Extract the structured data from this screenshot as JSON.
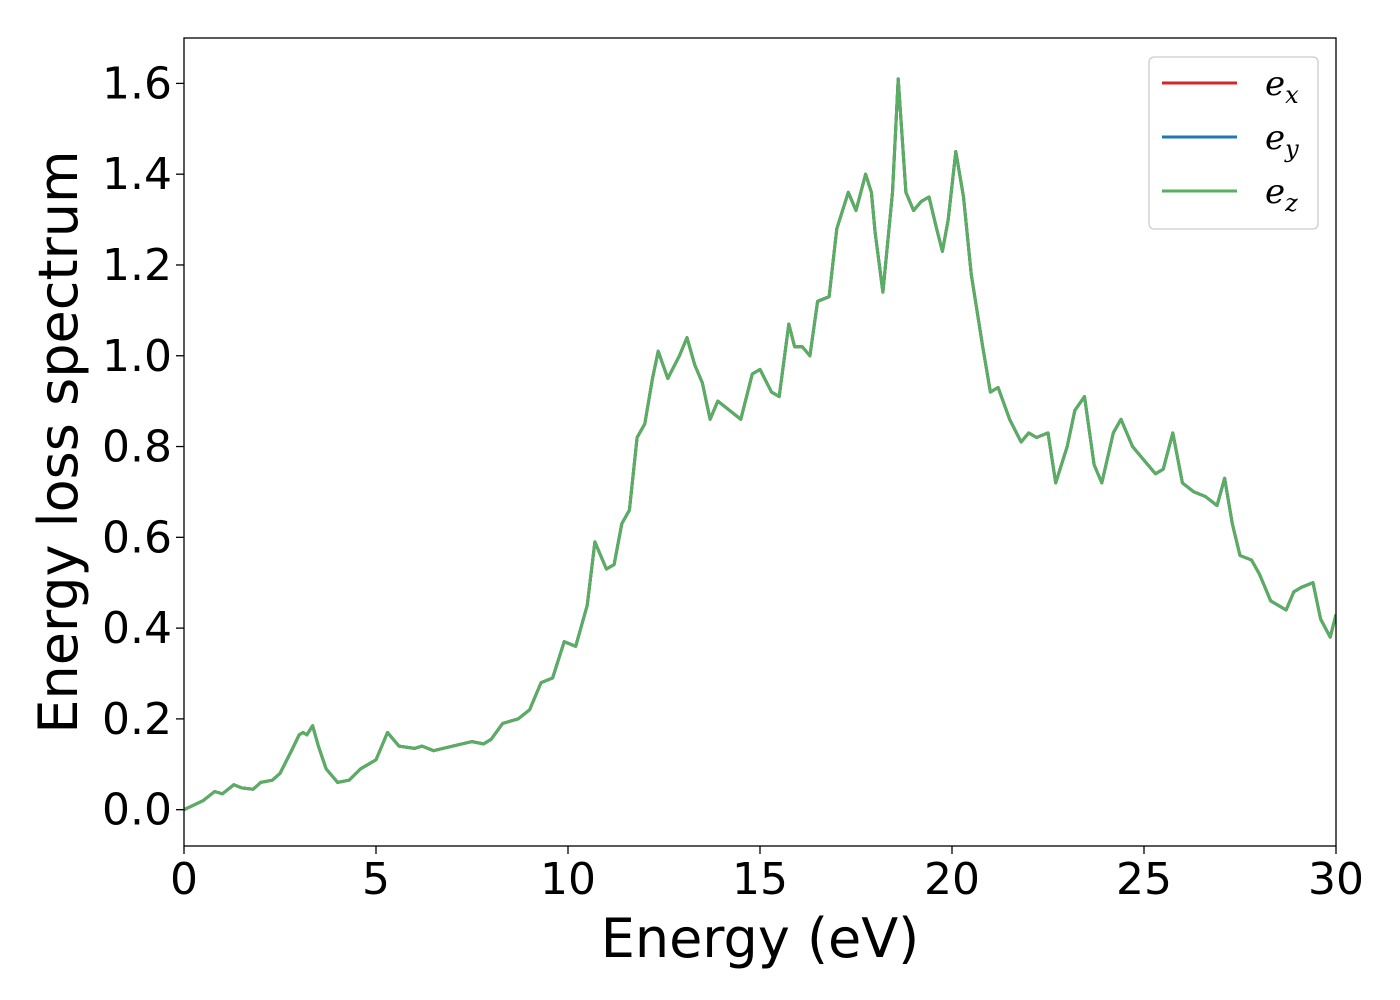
{
  "chart_data": {
    "type": "line",
    "xlabel": "Energy (eV)",
    "ylabel": "Energy loss spectrum",
    "xlim": [
      0,
      30
    ],
    "ylim": [
      -0.08,
      1.7
    ],
    "xticks": [
      0,
      5,
      10,
      15,
      20,
      25,
      30
    ],
    "xtick_labels": [
      "0",
      "5",
      "10",
      "15",
      "20",
      "25",
      "30"
    ],
    "yticks": [
      0.0,
      0.2,
      0.4,
      0.6,
      0.8,
      1.0,
      1.2,
      1.4,
      1.6
    ],
    "ytick_labels": [
      "0.0",
      "0.2",
      "0.4",
      "0.6",
      "0.8",
      "1.0",
      "1.2",
      "1.4",
      "1.6"
    ],
    "grid": false,
    "legend_position": "top-right",
    "x": [
      0,
      0.5,
      0.8,
      1.0,
      1.3,
      1.5,
      1.8,
      2.0,
      2.3,
      2.5,
      2.8,
      3.0,
      3.1,
      3.2,
      3.35,
      3.5,
      3.7,
      4.0,
      4.3,
      4.6,
      5.0,
      5.3,
      5.6,
      6.0,
      6.2,
      6.5,
      7.0,
      7.5,
      7.8,
      8.0,
      8.3,
      8.7,
      9.0,
      9.3,
      9.6,
      9.9,
      10.2,
      10.5,
      10.7,
      11.0,
      11.2,
      11.4,
      11.6,
      11.8,
      12.0,
      12.2,
      12.35,
      12.6,
      12.9,
      13.1,
      13.3,
      13.5,
      13.7,
      13.9,
      14.2,
      14.5,
      14.8,
      15.0,
      15.3,
      15.5,
      15.75,
      15.9,
      16.1,
      16.3,
      16.5,
      16.8,
      17.0,
      17.3,
      17.5,
      17.75,
      17.9,
      18.0,
      18.2,
      18.45,
      18.6,
      18.8,
      19.0,
      19.2,
      19.4,
      19.6,
      19.75,
      19.9,
      20.1,
      20.3,
      20.5,
      20.8,
      21.0,
      21.2,
      21.5,
      21.8,
      22.0,
      22.2,
      22.5,
      22.7,
      23.0,
      23.2,
      23.45,
      23.7,
      23.9,
      24.2,
      24.4,
      24.7,
      25.0,
      25.3,
      25.5,
      25.75,
      26.0,
      26.3,
      26.6,
      26.9,
      27.1,
      27.3,
      27.5,
      27.8,
      28.0,
      28.3,
      28.5,
      28.7,
      28.9,
      29.1,
      29.4,
      29.6,
      29.85,
      30.0
    ],
    "series": [
      {
        "name_main": "e",
        "name_sub": "x",
        "color": "#d62728",
        "values": [
          0.0,
          0.02,
          0.04,
          0.035,
          0.055,
          0.048,
          0.045,
          0.06,
          0.065,
          0.08,
          0.13,
          0.165,
          0.17,
          0.165,
          0.185,
          0.14,
          0.09,
          0.06,
          0.065,
          0.09,
          0.11,
          0.17,
          0.14,
          0.135,
          0.14,
          0.13,
          0.14,
          0.15,
          0.145,
          0.155,
          0.19,
          0.2,
          0.22,
          0.28,
          0.29,
          0.37,
          0.36,
          0.45,
          0.59,
          0.53,
          0.54,
          0.63,
          0.66,
          0.82,
          0.85,
          0.95,
          1.01,
          0.95,
          1.0,
          1.04,
          0.98,
          0.94,
          0.86,
          0.9,
          0.88,
          0.86,
          0.96,
          0.97,
          0.92,
          0.91,
          1.07,
          1.02,
          1.02,
          1.0,
          1.12,
          1.13,
          1.28,
          1.36,
          1.32,
          1.4,
          1.36,
          1.27,
          1.14,
          1.36,
          1.61,
          1.36,
          1.32,
          1.34,
          1.35,
          1.28,
          1.23,
          1.3,
          1.45,
          1.35,
          1.18,
          1.02,
          0.92,
          0.93,
          0.86,
          0.81,
          0.83,
          0.82,
          0.83,
          0.72,
          0.8,
          0.88,
          0.91,
          0.76,
          0.72,
          0.83,
          0.86,
          0.8,
          0.77,
          0.74,
          0.75,
          0.83,
          0.72,
          0.7,
          0.69,
          0.67,
          0.73,
          0.63,
          0.56,
          0.55,
          0.52,
          0.46,
          0.45,
          0.44,
          0.48,
          0.49,
          0.5,
          0.42,
          0.38,
          0.43
        ]
      },
      {
        "name_main": "e",
        "name_sub": "y",
        "color": "#1f77b4",
        "values": [
          0.0,
          0.02,
          0.04,
          0.035,
          0.055,
          0.048,
          0.045,
          0.06,
          0.065,
          0.08,
          0.13,
          0.165,
          0.17,
          0.165,
          0.185,
          0.14,
          0.09,
          0.06,
          0.065,
          0.09,
          0.11,
          0.17,
          0.14,
          0.135,
          0.14,
          0.13,
          0.14,
          0.15,
          0.145,
          0.155,
          0.19,
          0.2,
          0.22,
          0.28,
          0.29,
          0.37,
          0.36,
          0.45,
          0.59,
          0.53,
          0.54,
          0.63,
          0.66,
          0.82,
          0.85,
          0.95,
          1.01,
          0.95,
          1.0,
          1.04,
          0.98,
          0.94,
          0.86,
          0.9,
          0.88,
          0.86,
          0.96,
          0.97,
          0.92,
          0.91,
          1.07,
          1.02,
          1.02,
          1.0,
          1.12,
          1.13,
          1.28,
          1.36,
          1.32,
          1.4,
          1.36,
          1.27,
          1.14,
          1.36,
          1.61,
          1.36,
          1.32,
          1.34,
          1.35,
          1.28,
          1.23,
          1.3,
          1.45,
          1.35,
          1.18,
          1.02,
          0.92,
          0.93,
          0.86,
          0.81,
          0.83,
          0.82,
          0.83,
          0.72,
          0.8,
          0.88,
          0.91,
          0.76,
          0.72,
          0.83,
          0.86,
          0.8,
          0.77,
          0.74,
          0.75,
          0.83,
          0.72,
          0.7,
          0.69,
          0.67,
          0.73,
          0.63,
          0.56,
          0.55,
          0.52,
          0.46,
          0.45,
          0.44,
          0.48,
          0.49,
          0.5,
          0.42,
          0.38,
          0.43
        ]
      },
      {
        "name_main": "e",
        "name_sub": "z",
        "color": "#5aae61",
        "values": [
          0.0,
          0.02,
          0.04,
          0.035,
          0.055,
          0.048,
          0.045,
          0.06,
          0.065,
          0.08,
          0.13,
          0.165,
          0.17,
          0.165,
          0.185,
          0.14,
          0.09,
          0.06,
          0.065,
          0.09,
          0.11,
          0.17,
          0.14,
          0.135,
          0.14,
          0.13,
          0.14,
          0.15,
          0.145,
          0.155,
          0.19,
          0.2,
          0.22,
          0.28,
          0.29,
          0.37,
          0.36,
          0.45,
          0.59,
          0.53,
          0.54,
          0.63,
          0.66,
          0.82,
          0.85,
          0.95,
          1.01,
          0.95,
          1.0,
          1.04,
          0.98,
          0.94,
          0.86,
          0.9,
          0.88,
          0.86,
          0.96,
          0.97,
          0.92,
          0.91,
          1.07,
          1.02,
          1.02,
          1.0,
          1.12,
          1.13,
          1.28,
          1.36,
          1.32,
          1.4,
          1.36,
          1.27,
          1.14,
          1.36,
          1.61,
          1.36,
          1.32,
          1.34,
          1.35,
          1.28,
          1.23,
          1.3,
          1.45,
          1.35,
          1.18,
          1.02,
          0.92,
          0.93,
          0.86,
          0.81,
          0.83,
          0.82,
          0.83,
          0.72,
          0.8,
          0.88,
          0.91,
          0.76,
          0.72,
          0.83,
          0.86,
          0.8,
          0.77,
          0.74,
          0.75,
          0.83,
          0.72,
          0.7,
          0.69,
          0.67,
          0.73,
          0.63,
          0.56,
          0.55,
          0.52,
          0.46,
          0.45,
          0.44,
          0.48,
          0.49,
          0.5,
          0.42,
          0.38,
          0.43
        ]
      }
    ]
  }
}
